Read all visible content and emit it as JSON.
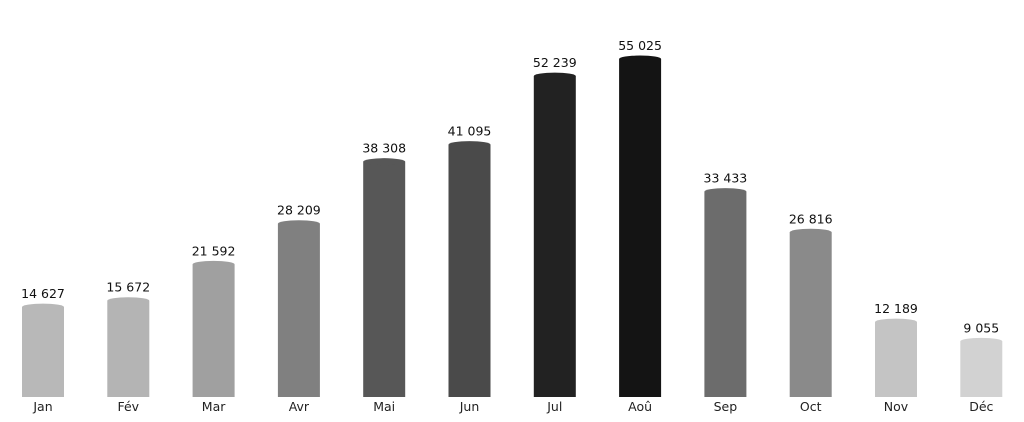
{
  "chart_data": {
    "type": "bar",
    "title": "",
    "xlabel": "",
    "ylabel": "",
    "categories": [
      "Jan",
      "Fév",
      "Mar",
      "Avr",
      "Mai",
      "Jun",
      "Jul",
      "Aoû",
      "Sep",
      "Oct",
      "Nov",
      "Déc"
    ],
    "values": [
      14627,
      15672,
      21592,
      28209,
      38308,
      41095,
      52239,
      55025,
      33433,
      26816,
      12189,
      9055
    ],
    "value_labels": [
      "14 627",
      "15 672",
      "21 592",
      "28 209",
      "38 308",
      "41 095",
      "52 239",
      "55 025",
      "33 433",
      "26 816",
      "12 189",
      "9 055"
    ],
    "bar_colors": [
      "#b8b8b8",
      "#b4b4b4",
      "#a0a0a0",
      "#808080",
      "#575757",
      "#4a4a4a",
      "#222222",
      "#141414",
      "#6c6c6c",
      "#8a8a8a",
      "#c4c4c4",
      "#d2d2d2"
    ],
    "ylim": [
      0,
      55025
    ],
    "grid": false,
    "legend": "none"
  }
}
